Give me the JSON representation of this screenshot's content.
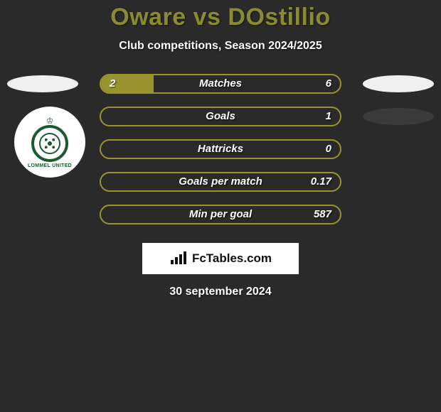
{
  "title": "Oware vs DOstillio",
  "subtitle": "Club competitions, Season 2024/2025",
  "date": "30 september 2024",
  "brand": "FcTables.com",
  "colors": {
    "bar_border": "#9a9430",
    "bar_fill": "#9a9430",
    "background": "#2a2a2a",
    "title_color": "#8a8a32",
    "text_color": "#ffffff"
  },
  "bars": [
    {
      "label": "Matches",
      "left": "2",
      "right": "6",
      "fill_pct": 22,
      "left_ellipse": "light",
      "right_ellipse": "light"
    },
    {
      "label": "Goals",
      "left": "",
      "right": "1",
      "fill_pct": 0,
      "left_ellipse": "badge",
      "right_ellipse": "dark"
    },
    {
      "label": "Hattricks",
      "left": "",
      "right": "0",
      "fill_pct": 0,
      "left_ellipse": "none",
      "right_ellipse": "none"
    },
    {
      "label": "Goals per match",
      "left": "",
      "right": "0.17",
      "fill_pct": 0,
      "left_ellipse": "none",
      "right_ellipse": "none"
    },
    {
      "label": "Min per goal",
      "left": "",
      "right": "587",
      "fill_pct": 0,
      "left_ellipse": "none",
      "right_ellipse": "none"
    }
  ],
  "badge": {
    "top_text": "♔",
    "bottom_text": "LOMMEL UNITED"
  }
}
